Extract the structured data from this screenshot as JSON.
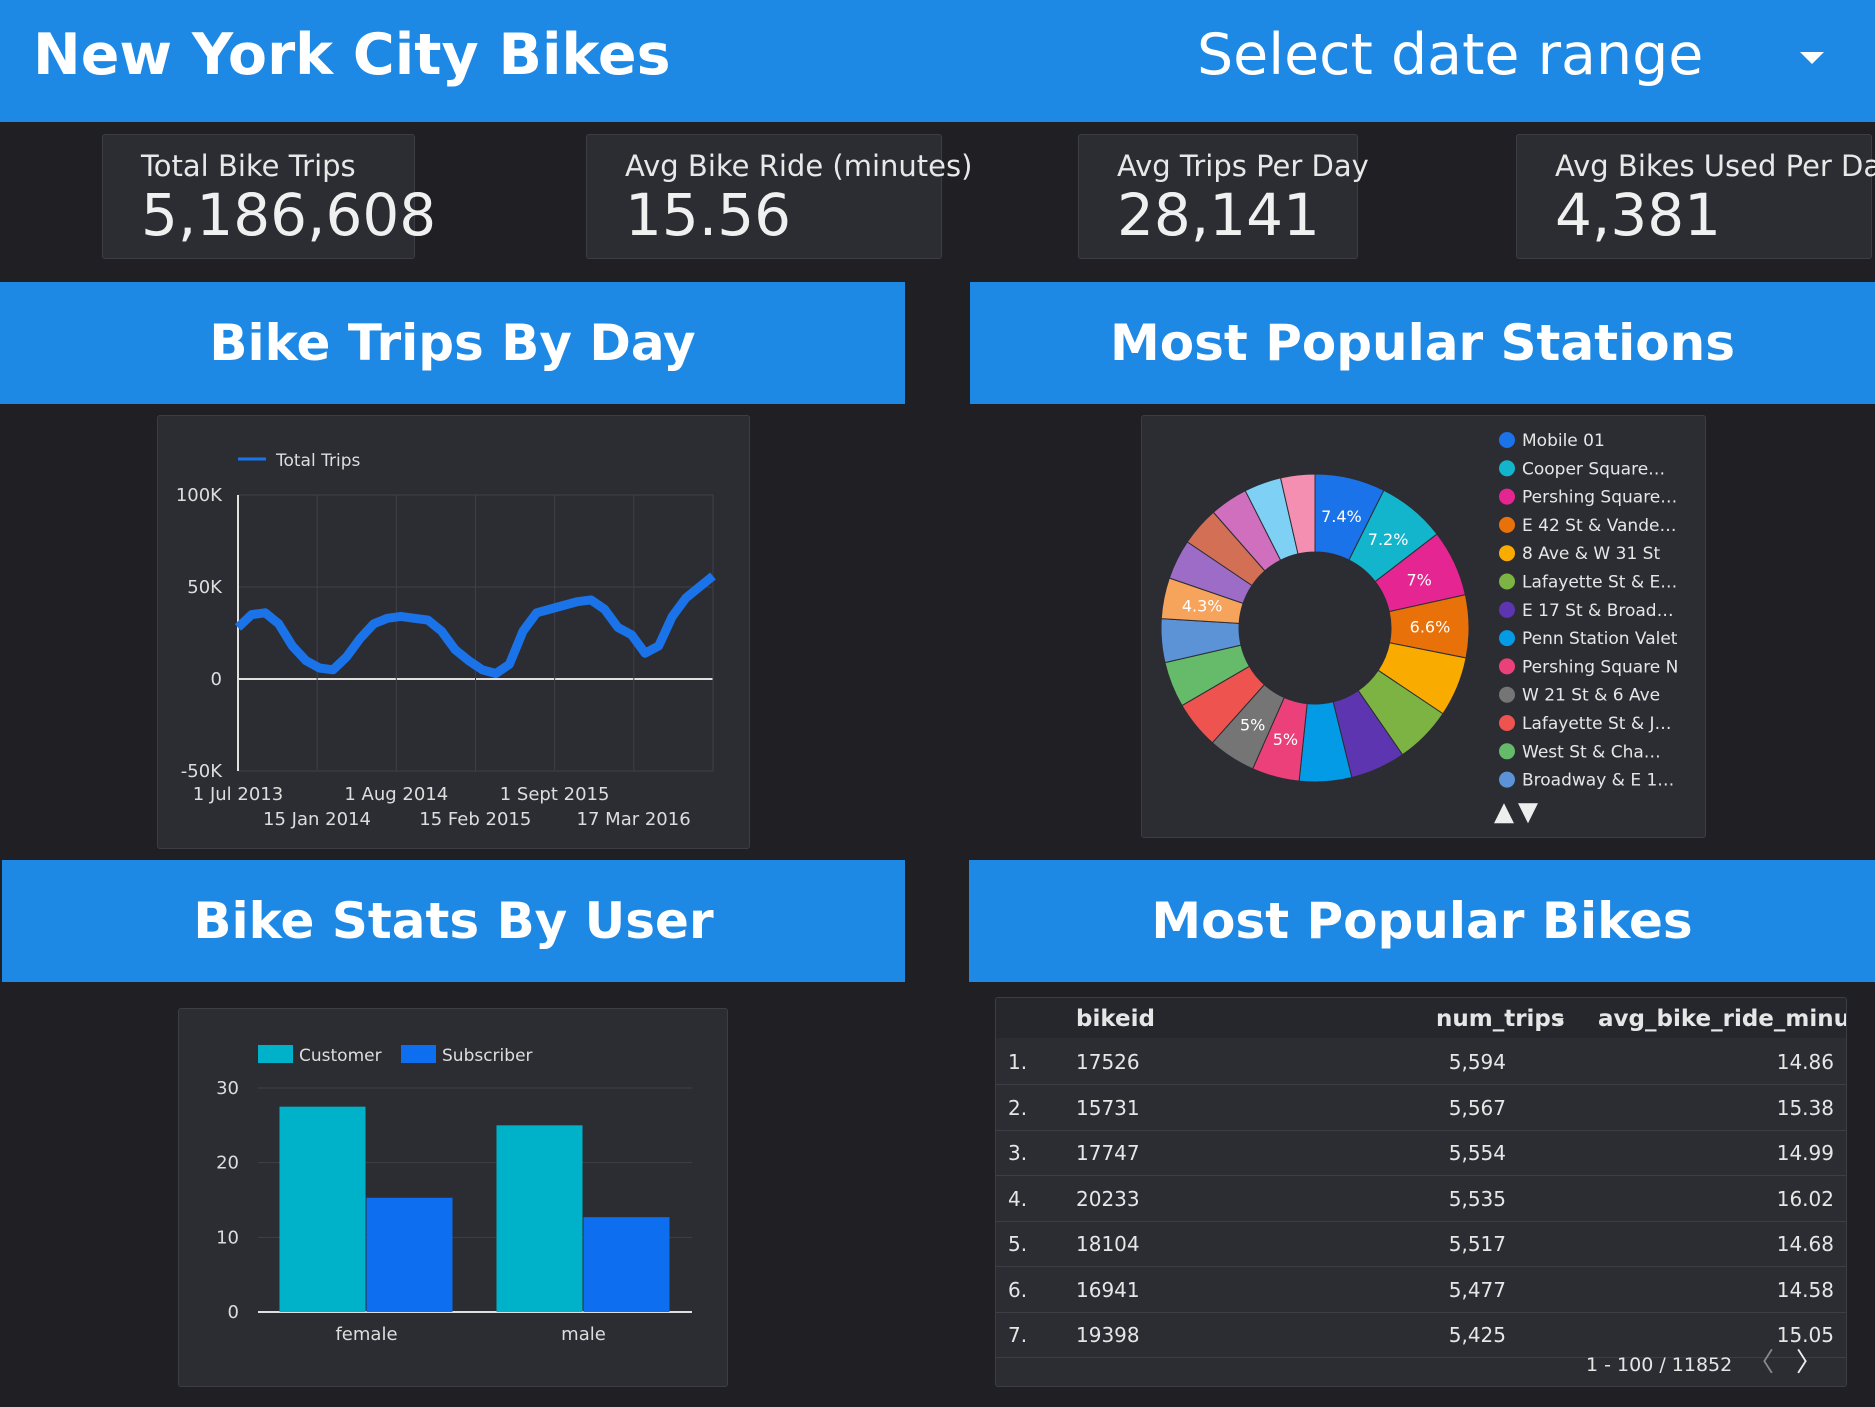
{
  "header": {
    "title": "New York City Bikes",
    "date_range_label": "Select date range"
  },
  "kpis": [
    {
      "label": "Total Bike Trips",
      "value": "5,186,608"
    },
    {
      "label": "Avg Bike Ride (minutes)",
      "value": "15.56"
    },
    {
      "label": "Avg Trips Per Day",
      "value": "28,141"
    },
    {
      "label": "Avg Bikes Used Per Day",
      "value": "4,381"
    }
  ],
  "sections": {
    "trips_by_day": "Bike Trips By Day",
    "popular_stations": "Most Popular Stations",
    "stats_by_user": "Bike Stats By User",
    "popular_bikes": "Most Popular Bikes"
  },
  "chart_data": [
    {
      "type": "line",
      "title": "",
      "legend": [
        "Total Trips"
      ],
      "legend_position": "top-left",
      "ylim": [
        -50000,
        100000
      ],
      "y_ticks": [
        "100K",
        "50K",
        "0",
        "-50K"
      ],
      "x_ticks_row1": [
        "1 Jul 2013",
        "1 Aug 2014",
        "1 Sept 2015"
      ],
      "x_ticks_row2": [
        "15 Jan 2014",
        "15 Feb 2015",
        "17 Mar 2016"
      ],
      "grid": true,
      "series": [
        {
          "name": "Total Trips",
          "color": "#1a73e8",
          "x": [
            "2013-07",
            "2013-08",
            "2013-09",
            "2013-10",
            "2013-11",
            "2013-12",
            "2014-01",
            "2014-02",
            "2014-03",
            "2014-04",
            "2014-05",
            "2014-06",
            "2014-07",
            "2014-08",
            "2014-09",
            "2014-10",
            "2014-11",
            "2014-12",
            "2015-01",
            "2015-02",
            "2015-03",
            "2015-04",
            "2015-05",
            "2015-06",
            "2015-07",
            "2015-08",
            "2015-09",
            "2015-10",
            "2015-11",
            "2015-12",
            "2016-01",
            "2016-02",
            "2016-03",
            "2016-04",
            "2016-05",
            "2016-06"
          ],
          "values": [
            28000,
            35000,
            36000,
            30000,
            18000,
            10000,
            6000,
            5000,
            12000,
            22000,
            30000,
            33000,
            34000,
            33000,
            32000,
            26000,
            16000,
            10000,
            5000,
            3000,
            8000,
            26000,
            36000,
            38000,
            40000,
            42000,
            43000,
            38000,
            28000,
            24000,
            14000,
            18000,
            34000,
            44000,
            50000,
            56000
          ]
        }
      ]
    },
    {
      "type": "pie",
      "title": "",
      "legend_position": "right",
      "slices": [
        {
          "label": "Mobile 01",
          "value": 7.4,
          "color": "#1a73e8"
        },
        {
          "label": "Cooper Square…",
          "value": 7.2,
          "color": "#12b5cb"
        },
        {
          "label": "Pershing Square…",
          "value": 7.0,
          "color": "#e52592"
        },
        {
          "label": "E 42 St & Vande…",
          "value": 6.6,
          "color": "#e8710a"
        },
        {
          "label": "8 Ave & W 31 St",
          "value": 6.3,
          "color": "#f9ab00"
        },
        {
          "label": "Lafayette St & E…",
          "value": 6.0,
          "color": "#7cb342"
        },
        {
          "label": "E 17 St & Broad…",
          "value": 5.8,
          "color": "#5e35b1"
        },
        {
          "label": "Penn Station Valet",
          "value": 5.5,
          "color": "#039be5"
        },
        {
          "label": "Pershing Square N",
          "value": 5.0,
          "color": "#ec407a"
        },
        {
          "label": "W 21 St & 6 Ave",
          "value": 5.0,
          "color": "#757575"
        },
        {
          "label": "Lafayette St & J…",
          "value": 5.0,
          "color": "#ef5350"
        },
        {
          "label": "West St & Cha…",
          "value": 4.8,
          "color": "#66bb6a"
        },
        {
          "label": "Broadway & E 1…",
          "value": 4.6,
          "color": "#5c93d6"
        },
        {
          "label": "",
          "value": 4.3,
          "color": "#f6a35b"
        },
        {
          "label": "",
          "value": 4.2,
          "color": "#9c6cc7"
        },
        {
          "label": "",
          "value": 4.1,
          "color": "#d36f55"
        },
        {
          "label": "",
          "value": 4.0,
          "color": "#cf6fbd"
        },
        {
          "label": "",
          "value": 3.9,
          "color": "#7fd0f5"
        },
        {
          "label": "",
          "value": 3.6,
          "color": "#f48fb1"
        }
      ],
      "data_labels": [
        "7.4%",
        "7.2%",
        "7%",
        "6.6%",
        "5%",
        "5%",
        "4.3%"
      ],
      "pager_symbols": [
        "▲",
        "▼"
      ]
    },
    {
      "type": "bar",
      "title": "",
      "categories": [
        "female",
        "male"
      ],
      "ylim": [
        0,
        30
      ],
      "y_ticks": [
        "30",
        "20",
        "10",
        "0"
      ],
      "legend_position": "top-left",
      "grid": true,
      "series": [
        {
          "name": "Customer",
          "values": [
            27.5,
            25
          ],
          "color": "#00b2c9"
        },
        {
          "name": "Subscriber",
          "values": [
            15.3,
            12.7
          ],
          "color": "#0d6ef0"
        }
      ]
    }
  ],
  "table": {
    "columns": [
      "bikeid",
      "num_trips",
      "avg_bike_ride_minut…"
    ],
    "rows": [
      {
        "idx": "1.",
        "bikeid": "17526",
        "num_trips": "5,594",
        "avg": "14.86"
      },
      {
        "idx": "2.",
        "bikeid": "15731",
        "num_trips": "5,567",
        "avg": "15.38"
      },
      {
        "idx": "3.",
        "bikeid": "17747",
        "num_trips": "5,554",
        "avg": "14.99"
      },
      {
        "idx": "4.",
        "bikeid": "20233",
        "num_trips": "5,535",
        "avg": "16.02"
      },
      {
        "idx": "5.",
        "bikeid": "18104",
        "num_trips": "5,517",
        "avg": "14.68"
      },
      {
        "idx": "6.",
        "bikeid": "16941",
        "num_trips": "5,477",
        "avg": "14.58"
      },
      {
        "idx": "7.",
        "bikeid": "19398",
        "num_trips": "5,425",
        "avg": "15.05"
      }
    ],
    "pagination": "1 - 100 / 11852",
    "prev_symbol": "〈",
    "next_symbol": "〉"
  }
}
